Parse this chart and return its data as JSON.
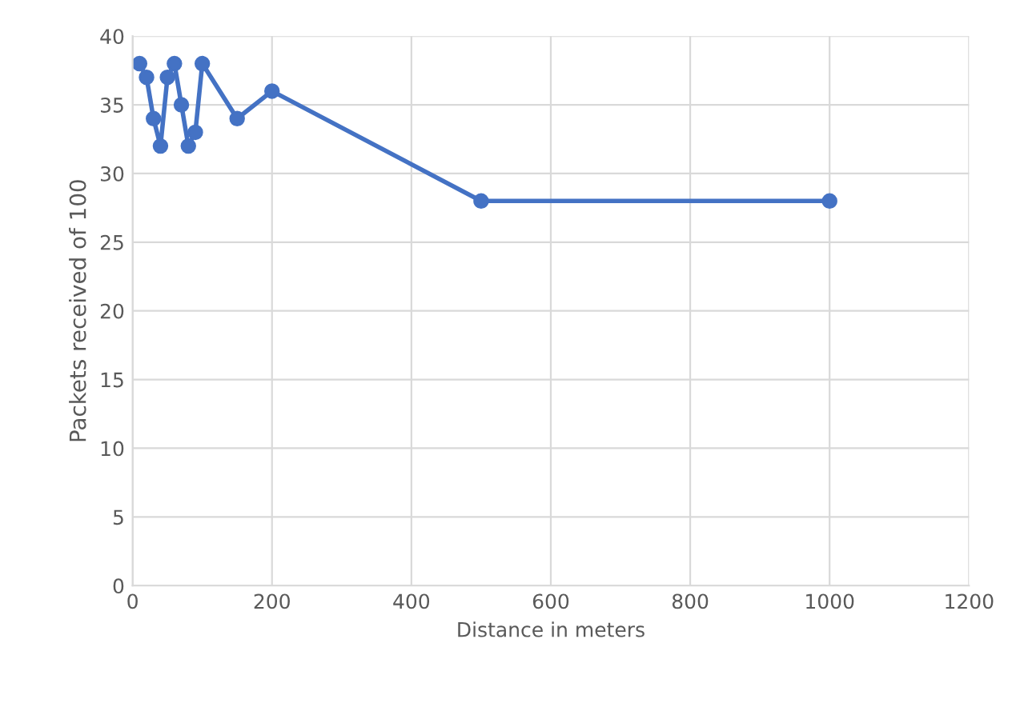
{
  "chart_data": {
    "type": "line",
    "xlabel": "Distance in meters",
    "ylabel": "Packets received of 100",
    "x": [
      10,
      20,
      30,
      40,
      50,
      60,
      70,
      80,
      90,
      100,
      150,
      200,
      500,
      1000
    ],
    "series": [
      {
        "color": "#4472c4",
        "values": [
          38,
          37,
          34,
          32,
          37,
          38,
          35,
          32,
          33,
          38,
          34,
          36,
          28,
          28
        ]
      }
    ],
    "xlim": [
      0,
      1200
    ],
    "xticks": [
      0,
      200,
      400,
      600,
      800,
      1000,
      1200
    ],
    "ylim": [
      0,
      40
    ],
    "yticks": [
      0,
      5,
      10,
      15,
      20,
      25,
      30,
      35,
      40
    ],
    "grid": true,
    "marker": "circle",
    "line_style": "solid"
  }
}
